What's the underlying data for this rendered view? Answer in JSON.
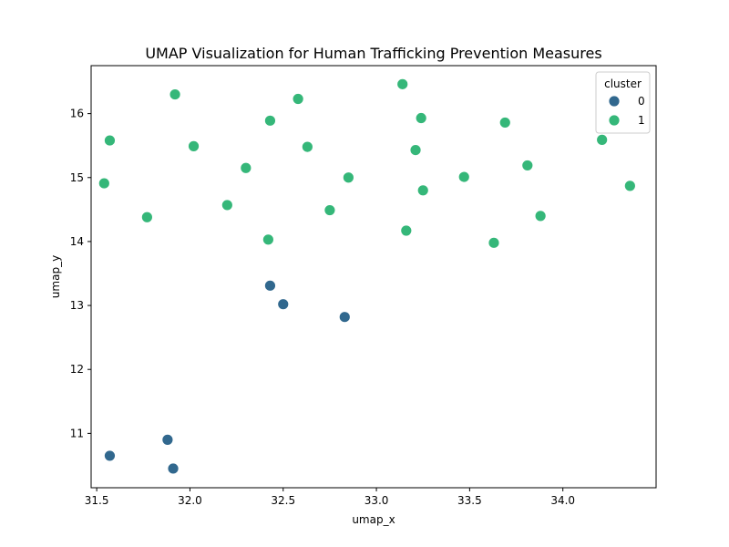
{
  "chart_data": {
    "type": "scatter",
    "title": "UMAP Visualization for Human Trafficking Prevention Measures",
    "xlabel": "umap_x",
    "ylabel": "umap_y",
    "xlim": [
      31.47,
      34.5
    ],
    "ylim": [
      10.15,
      16.75
    ],
    "xticks": [
      31.5,
      32.0,
      32.5,
      33.0,
      33.5,
      34.0
    ],
    "xtick_labels": [
      "31.5",
      "32.0",
      "32.5",
      "33.0",
      "33.5",
      "34.0"
    ],
    "yticks": [
      11,
      12,
      13,
      14,
      15,
      16
    ],
    "ytick_labels": [
      "11",
      "12",
      "13",
      "14",
      "15",
      "16"
    ],
    "grid": false,
    "legend": {
      "title": "cluster",
      "placement": "top-right"
    },
    "series": [
      {
        "name": "0",
        "color": "#31688e",
        "points": [
          {
            "x": 31.57,
            "y": 10.65
          },
          {
            "x": 31.88,
            "y": 10.9
          },
          {
            "x": 31.91,
            "y": 10.45
          },
          {
            "x": 32.43,
            "y": 13.31
          },
          {
            "x": 32.5,
            "y": 13.02
          },
          {
            "x": 32.83,
            "y": 12.82
          }
        ]
      },
      {
        "name": "1",
        "color": "#35b779",
        "points": [
          {
            "x": 31.54,
            "y": 14.91
          },
          {
            "x": 31.57,
            "y": 15.58
          },
          {
            "x": 31.77,
            "y": 14.38
          },
          {
            "x": 31.92,
            "y": 16.3
          },
          {
            "x": 32.02,
            "y": 15.49
          },
          {
            "x": 32.2,
            "y": 14.57
          },
          {
            "x": 32.3,
            "y": 15.15
          },
          {
            "x": 32.42,
            "y": 14.03
          },
          {
            "x": 32.43,
            "y": 15.89
          },
          {
            "x": 32.58,
            "y": 16.23
          },
          {
            "x": 32.63,
            "y": 15.48
          },
          {
            "x": 32.75,
            "y": 14.49
          },
          {
            "x": 32.85,
            "y": 15.0
          },
          {
            "x": 33.14,
            "y": 16.46
          },
          {
            "x": 33.16,
            "y": 14.17
          },
          {
            "x": 33.21,
            "y": 15.43
          },
          {
            "x": 33.24,
            "y": 15.93
          },
          {
            "x": 33.25,
            "y": 14.8
          },
          {
            "x": 33.47,
            "y": 15.01
          },
          {
            "x": 33.63,
            "y": 13.98
          },
          {
            "x": 33.69,
            "y": 15.86
          },
          {
            "x": 33.81,
            "y": 15.19
          },
          {
            "x": 33.88,
            "y": 14.4
          },
          {
            "x": 34.21,
            "y": 15.59
          },
          {
            "x": 34.36,
            "y": 14.87
          }
        ]
      }
    ]
  }
}
